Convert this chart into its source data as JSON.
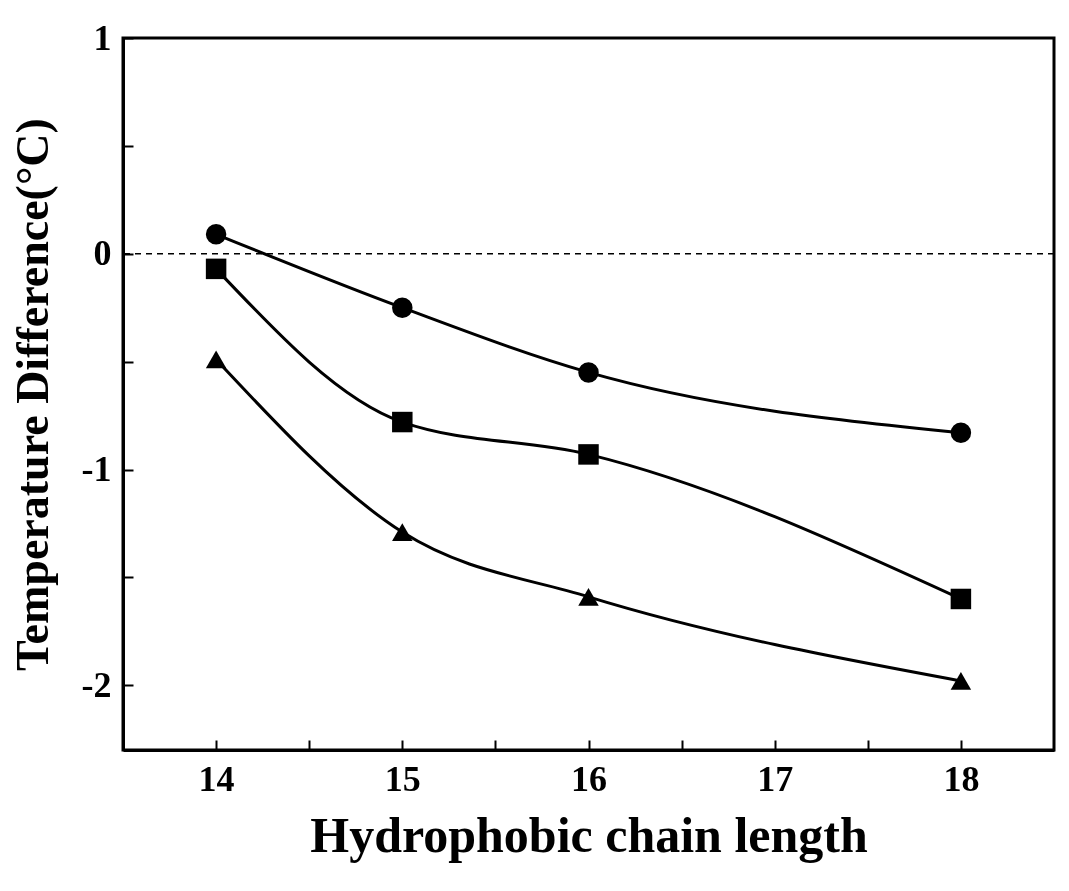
{
  "chart_data": {
    "type": "line",
    "xlabel": "Hydrophobic chain length",
    "ylabel": "Temperature Difference(°C)",
    "x": [
      14,
      15,
      16,
      18
    ],
    "series": [
      {
        "color": "#000000",
        "marker": "circle",
        "line_style": "solid",
        "values": [
          0.09,
          -0.25,
          -0.55,
          -0.83
        ]
      },
      {
        "color": "#000000",
        "marker": "square",
        "line_style": "solid",
        "values": [
          -0.07,
          -0.78,
          -0.93,
          -1.6
        ]
      },
      {
        "color": "#000000",
        "marker": "triangle",
        "line_style": "solid",
        "values": [
          -0.49,
          -1.29,
          -1.59,
          -1.98
        ]
      }
    ],
    "xlim": [
      13.5,
      18.5
    ],
    "xticks": [
      14,
      {
        "value": 14.5,
        "label": null
      },
      15,
      {
        "value": 15.5,
        "label": null
      },
      16,
      {
        "value": 16.5,
        "label": null
      },
      17,
      {
        "value": 17.5,
        "label": null
      },
      18
    ],
    "ylim": [
      -2.3,
      1
    ],
    "yticks": [
      -2,
      {
        "value": -1.5,
        "label": null
      },
      -1,
      {
        "value": -0.5,
        "label": null
      },
      0,
      {
        "value": 0.5,
        "label": null
      },
      1
    ],
    "ref_lines": [
      {
        "axis": "y",
        "value": 0,
        "color": "#000000",
        "line_style": "dashed"
      }
    ],
    "grid": false
  }
}
